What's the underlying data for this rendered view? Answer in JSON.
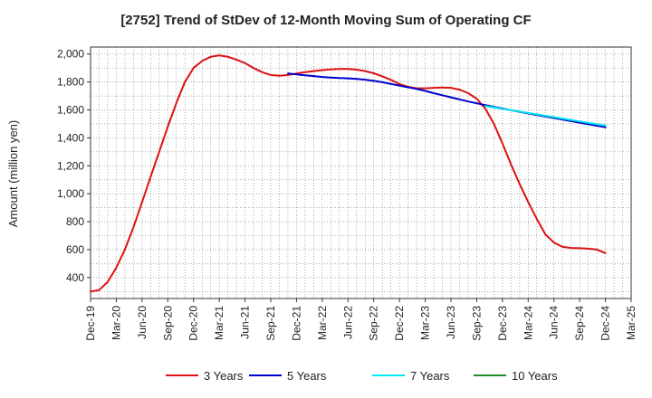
{
  "chart_data": {
    "type": "line",
    "title": "[2752]  Trend of StDev of 12-Month Moving Sum of Operating CF",
    "xlabel": "",
    "ylabel": "Amount (million yen)",
    "ylim": [
      250,
      2050
    ],
    "y_ticks": [
      400,
      600,
      800,
      1000,
      1200,
      1400,
      1600,
      1800,
      2000
    ],
    "y_tick_labels": [
      "400",
      "600",
      "800",
      "1,000",
      "1,200",
      "1,400",
      "1,600",
      "1,800",
      "2,000"
    ],
    "x_tick_labels": [
      "Dec-19",
      "Mar-20",
      "Jun-20",
      "Sep-20",
      "Dec-20",
      "Mar-21",
      "Jun-21",
      "Sep-21",
      "Dec-21",
      "Mar-22",
      "Jun-22",
      "Sep-22",
      "Dec-22",
      "Mar-23",
      "Jun-23",
      "Sep-23",
      "Dec-23",
      "Mar-24",
      "Jun-24",
      "Sep-24",
      "Dec-24",
      "Mar-25"
    ],
    "x_unit": "month",
    "grid": true,
    "legend_position": "bottom",
    "series": [
      {
        "name": "3 Years",
        "color": "#dd1111",
        "points": [
          [
            "Dec-19",
            300
          ],
          [
            "Jan-20",
            310
          ],
          [
            "Feb-20",
            370
          ],
          [
            "Mar-20",
            470
          ],
          [
            "Apr-20",
            600
          ],
          [
            "May-20",
            760
          ],
          [
            "Jun-20",
            940
          ],
          [
            "Jul-20",
            1120
          ],
          [
            "Aug-20",
            1300
          ],
          [
            "Sep-20",
            1480
          ],
          [
            "Oct-20",
            1650
          ],
          [
            "Nov-20",
            1800
          ],
          [
            "Dec-20",
            1900
          ],
          [
            "Jan-21",
            1950
          ],
          [
            "Feb-21",
            1980
          ],
          [
            "Mar-21",
            1990
          ],
          [
            "Apr-21",
            1980
          ],
          [
            "May-21",
            1960
          ],
          [
            "Jun-21",
            1935
          ],
          [
            "Jul-21",
            1900
          ],
          [
            "Aug-21",
            1870
          ],
          [
            "Sep-21",
            1850
          ],
          [
            "Oct-21",
            1845
          ],
          [
            "Nov-21",
            1850
          ],
          [
            "Dec-21",
            1860
          ],
          [
            "Jan-22",
            1870
          ],
          [
            "Feb-22",
            1878
          ],
          [
            "Mar-22",
            1885
          ],
          [
            "Apr-22",
            1890
          ],
          [
            "May-22",
            1893
          ],
          [
            "Jun-22",
            1893
          ],
          [
            "Jul-22",
            1888
          ],
          [
            "Aug-22",
            1878
          ],
          [
            "Sep-22",
            1862
          ],
          [
            "Oct-22",
            1840
          ],
          [
            "Nov-22",
            1815
          ],
          [
            "Dec-22",
            1785
          ],
          [
            "Jan-23",
            1765
          ],
          [
            "Feb-23",
            1755
          ],
          [
            "Mar-23",
            1755
          ],
          [
            "Apr-23",
            1758
          ],
          [
            "May-23",
            1760
          ],
          [
            "Jun-23",
            1758
          ],
          [
            "Jul-23",
            1745
          ],
          [
            "Aug-23",
            1720
          ],
          [
            "Sep-23",
            1680
          ],
          [
            "Oct-23",
            1610
          ],
          [
            "Nov-23",
            1500
          ],
          [
            "Dec-23",
            1360
          ],
          [
            "Jan-24",
            1210
          ],
          [
            "Feb-24",
            1070
          ],
          [
            "Mar-24",
            940
          ],
          [
            "Apr-24",
            820
          ],
          [
            "May-24",
            710
          ],
          [
            "Jun-24",
            650
          ],
          [
            "Jul-24",
            620
          ],
          [
            "Aug-24",
            612
          ],
          [
            "Sep-24",
            610
          ],
          [
            "Oct-24",
            607
          ],
          [
            "Nov-24",
            600
          ],
          [
            "Dec-24",
            575
          ]
        ]
      },
      {
        "name": "5 Years",
        "color": "#0000cc",
        "points": [
          [
            "Nov-21",
            1860
          ],
          [
            "Dec-21",
            1854
          ],
          [
            "Jan-22",
            1848
          ],
          [
            "Feb-22",
            1842
          ],
          [
            "Mar-22",
            1836
          ],
          [
            "Apr-22",
            1832
          ],
          [
            "May-22",
            1828
          ],
          [
            "Jun-22",
            1826
          ],
          [
            "Jul-22",
            1822
          ],
          [
            "Aug-22",
            1816
          ],
          [
            "Sep-22",
            1808
          ],
          [
            "Oct-22",
            1798
          ],
          [
            "Nov-22",
            1786
          ],
          [
            "Dec-22",
            1774
          ],
          [
            "Jan-23",
            1762
          ],
          [
            "Feb-23",
            1750
          ],
          [
            "Mar-23",
            1736
          ],
          [
            "Apr-23",
            1720
          ],
          [
            "May-23",
            1705
          ],
          [
            "Jun-23",
            1690
          ],
          [
            "Jul-23",
            1675
          ],
          [
            "Aug-23",
            1660
          ],
          [
            "Sep-23",
            1647
          ],
          [
            "Oct-23",
            1634
          ],
          [
            "Nov-23",
            1622
          ],
          [
            "Dec-23",
            1610
          ],
          [
            "Jan-24",
            1598
          ],
          [
            "Feb-24",
            1586
          ],
          [
            "Mar-24",
            1575
          ],
          [
            "Apr-24",
            1564
          ],
          [
            "May-24",
            1553
          ],
          [
            "Jun-24",
            1542
          ],
          [
            "Jul-24",
            1531
          ],
          [
            "Aug-24",
            1520
          ],
          [
            "Sep-24",
            1509
          ],
          [
            "Oct-24",
            1498
          ],
          [
            "Nov-24",
            1487
          ],
          [
            "Dec-24",
            1476
          ]
        ]
      },
      {
        "name": "7 Years",
        "color": "#00e5ee",
        "points": [
          [
            "Oct-23",
            1628
          ],
          [
            "Nov-23",
            1618
          ],
          [
            "Dec-23",
            1608
          ],
          [
            "Jan-24",
            1598
          ],
          [
            "Feb-24",
            1588
          ],
          [
            "Mar-24",
            1578
          ],
          [
            "Apr-24",
            1568
          ],
          [
            "May-24",
            1558
          ],
          [
            "Jun-24",
            1548
          ],
          [
            "Jul-24",
            1538
          ],
          [
            "Aug-24",
            1528
          ],
          [
            "Sep-24",
            1518
          ],
          [
            "Oct-24",
            1508
          ],
          [
            "Nov-24",
            1498
          ],
          [
            "Dec-24",
            1488
          ]
        ]
      },
      {
        "name": "10 Years",
        "color": "#228b22",
        "points": []
      }
    ]
  }
}
